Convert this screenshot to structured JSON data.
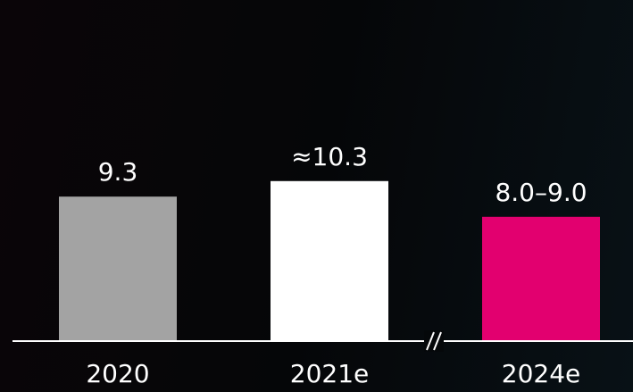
{
  "chart_data": {
    "type": "bar",
    "categories": [
      "2020",
      "2021e",
      "2024e"
    ],
    "values": [
      9.3,
      10.3,
      8.5
    ],
    "value_labels": [
      "9.3",
      "≈10.3",
      "8.0–9.0"
    ],
    "ranges": [
      null,
      null,
      [
        8.0,
        9.0
      ]
    ],
    "axis_break_between": [
      "2021e",
      "2024e"
    ],
    "colors": [
      "#a3a3a3",
      "#ffffff",
      "#e2006f"
    ],
    "title": "",
    "xlabel": "",
    "ylabel": "",
    "grid": false,
    "legend": "none"
  }
}
